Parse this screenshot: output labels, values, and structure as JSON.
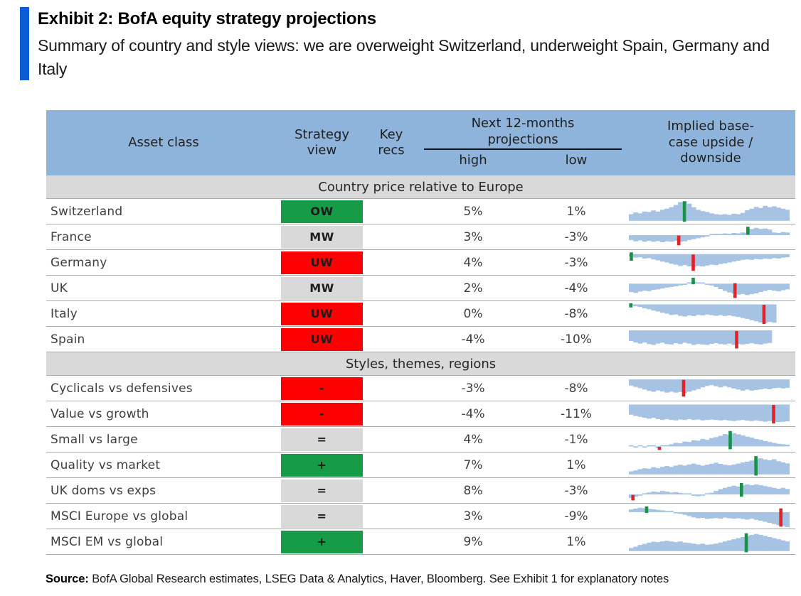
{
  "header": {
    "exhibit_title": "Exhibit 2: BofA equity strategy projections",
    "subtitle": "Summary of country and style views: we are overweight Switzerland, underweight Spain, Germany and Italy"
  },
  "colors": {
    "accent_blue": "#0B5CD5",
    "header_bg": "#8EB4DC",
    "section_bg": "#D9D9D9",
    "view_green": "#169C47",
    "view_red": "#FE0000",
    "view_gray": "#D9D9D9",
    "spark_fill": "#A6C3E4",
    "marker_green": "#1A9148",
    "marker_red": "#E32227"
  },
  "table": {
    "columns": {
      "asset_class": "Asset class",
      "strategy_view": "Strategy view",
      "key_recs": "Key recs",
      "projections_group": "Next 12-months projections",
      "high": "high",
      "low": "low",
      "implied": "Implied base-case upside / downside"
    },
    "sections": [
      {
        "label": "Country price relative to Europe",
        "rows": [
          {
            "name": "Switzerland",
            "view": "OW",
            "view_color": "green",
            "key_recs": "",
            "high": "5%",
            "low": "1%",
            "spark": {
              "baseline": 0.93,
              "values": [
                0.3,
                0.38,
                0.34,
                0.42,
                0.4,
                0.47,
                0.42,
                0.5,
                0.55,
                0.62,
                0.72,
                0.85,
                0.88,
                0.78,
                0.62,
                0.5,
                0.44,
                0.4,
                0.34,
                0.3,
                0.28,
                0.3,
                0.27,
                0.32,
                0.3,
                0.36,
                0.48,
                0.55,
                0.63,
                0.58,
                0.68,
                0.62,
                0.66,
                0.6,
                0.55,
                0.5
              ],
              "markers": [
                {
                  "pos": 0.345,
                  "color": "green",
                  "from": 0.04,
                  "to": 0.97
                }
              ]
            }
          },
          {
            "name": "France",
            "view": "MW",
            "view_color": "gray",
            "key_recs": "",
            "high": "3%",
            "low": "-3%",
            "spark": {
              "baseline": 0.42,
              "values": [
                -0.22,
                -0.28,
                -0.24,
                -0.3,
                -0.26,
                -0.3,
                -0.27,
                -0.32,
                -0.28,
                -0.3,
                -0.26,
                -0.3,
                -0.28,
                -0.22,
                -0.18,
                -0.14,
                -0.1,
                -0.06,
                0.04,
                0.06,
                0.04,
                0.08,
                0.06,
                0.1,
                0.08,
                0.12,
                0.1,
                0.28,
                0.33,
                0.28,
                0.3,
                0.26,
                0.12,
                0.1,
                0.14,
                0.12
              ],
              "markers": [
                {
                  "pos": 0.31,
                  "color": "red",
                  "from": 0.44,
                  "to": 0.88
                },
                {
                  "pos": 0.74,
                  "color": "green",
                  "from": 0.04,
                  "to": 0.4
                }
              ]
            }
          },
          {
            "name": "Germany",
            "view": "UW",
            "view_color": "red",
            "key_recs": "",
            "high": "4%",
            "low": "-3%",
            "spark": {
              "baseline": 0.12,
              "values": [
                -0.1,
                -0.16,
                -0.14,
                -0.2,
                -0.18,
                -0.24,
                -0.28,
                -0.34,
                -0.38,
                -0.44,
                -0.48,
                -0.54,
                -0.5,
                -0.56,
                -0.58,
                -0.54,
                -0.56,
                -0.52,
                -0.48,
                -0.5,
                -0.45,
                -0.42,
                -0.38,
                -0.34,
                -0.3,
                -0.26,
                -0.24,
                -0.26,
                -0.22,
                -0.24,
                -0.2,
                -0.22,
                -0.18,
                -0.2,
                -0.16,
                -0.14
              ],
              "markers": [
                {
                  "pos": 0.015,
                  "color": "green",
                  "from": 0.04,
                  "to": 0.42
                },
                {
                  "pos": 0.4,
                  "color": "red",
                  "from": 0.14,
                  "to": 0.88
                }
              ]
            }
          },
          {
            "name": "UK",
            "view": "MW",
            "view_color": "gray",
            "key_recs": "",
            "high": "2%",
            "low": "-4%",
            "spark": {
              "baseline": 0.3,
              "values": [
                -0.38,
                -0.42,
                -0.36,
                -0.32,
                -0.34,
                -0.28,
                -0.26,
                -0.22,
                -0.18,
                -0.15,
                -0.12,
                -0.08,
                -0.05,
                0.06,
                0.09,
                0.06,
                0.03,
                -0.04,
                -0.08,
                -0.15,
                -0.25,
                -0.33,
                -0.4,
                -0.45,
                -0.5,
                -0.47,
                -0.52,
                -0.48,
                -0.44,
                -0.38,
                -0.33,
                -0.28,
                -0.32,
                -0.35,
                -0.3,
                -0.26
              ],
              "markers": [
                {
                  "pos": 0.4,
                  "color": "green",
                  "from": 0.03,
                  "to": 0.33
                },
                {
                  "pos": 0.66,
                  "color": "red",
                  "from": 0.28,
                  "to": 0.95
                }
              ]
            }
          },
          {
            "name": "Italy",
            "view": "UW",
            "view_color": "red",
            "key_recs": "",
            "high": "0%",
            "low": "-8%",
            "spark": {
              "baseline": 0.08,
              "values": [
                -0.04,
                -0.08,
                -0.12,
                -0.18,
                -0.22,
                -0.28,
                -0.32,
                -0.38,
                -0.42,
                -0.48,
                -0.46,
                -0.52,
                -0.55,
                -0.5,
                -0.53,
                -0.48,
                -0.5,
                -0.46,
                -0.49,
                -0.52,
                -0.49,
                -0.53,
                -0.5,
                -0.54,
                -0.57,
                -0.62,
                -0.66,
                -0.72,
                -0.77,
                -0.82,
                -0.85,
                -0.8,
                -0.83,
                null,
                null,
                null
              ],
              "markers": [
                {
                  "pos": 0.012,
                  "color": "green",
                  "from": 0.03,
                  "to": 0.22
                },
                {
                  "pos": 0.84,
                  "color": "red",
                  "from": 0.1,
                  "to": 0.97
                }
              ]
            }
          },
          {
            "name": "Spain",
            "view": "UW",
            "view_color": "red",
            "key_recs": "",
            "high": "-4%",
            "low": "-10%",
            "spark": {
              "baseline": 0.1,
              "values": [
                -0.48,
                -0.55,
                -0.6,
                -0.55,
                -0.62,
                -0.66,
                -0.6,
                -0.56,
                -0.62,
                -0.64,
                -0.58,
                -0.62,
                -0.56,
                -0.6,
                -0.66,
                -0.62,
                -0.64,
                -0.66,
                -0.61,
                -0.58,
                -0.62,
                -0.64,
                -0.6,
                -0.66,
                -0.62,
                -0.64,
                -0.61,
                -0.58,
                -0.62,
                -0.64,
                -0.6,
                -0.57,
                null,
                null,
                null,
                null
              ],
              "markers": [
                {
                  "pos": 0.67,
                  "color": "red",
                  "from": 0.13,
                  "to": 0.92
                }
              ]
            }
          }
        ]
      },
      {
        "label": "Styles, themes, regions",
        "rows": [
          {
            "name": "Cyclicals vs defensives",
            "view": "-",
            "view_color": "red",
            "key_recs": "",
            "high": "-3%",
            "low": "-8%",
            "spark": {
              "baseline": 0.1,
              "values": [
                -0.28,
                -0.34,
                -0.4,
                -0.46,
                -0.52,
                -0.56,
                -0.5,
                -0.55,
                -0.6,
                -0.56,
                -0.6,
                -0.57,
                -0.62,
                -0.56,
                -0.5,
                -0.44,
                -0.36,
                -0.3,
                -0.26,
                -0.31,
                -0.36,
                -0.31,
                -0.36,
                -0.41,
                -0.46,
                -0.51,
                -0.46,
                -0.51,
                -0.48,
                -0.45,
                -0.42,
                -0.45,
                -0.4,
                -0.38,
                -0.41,
                -0.38
              ],
              "markers": [
                {
                  "pos": 0.34,
                  "color": "red",
                  "from": 0.12,
                  "to": 0.88
                }
              ]
            }
          },
          {
            "name": "Value vs growth",
            "view": "-",
            "view_color": "red",
            "key_recs": "",
            "high": "-4%",
            "low": "-11%",
            "spark": {
              "baseline": 0.08,
              "values": [
                -0.46,
                -0.52,
                -0.56,
                -0.6,
                -0.64,
                -0.6,
                -0.66,
                -0.7,
                -0.66,
                -0.7,
                -0.72,
                -0.68,
                -0.7,
                -0.66,
                -0.7,
                -0.68,
                -0.72,
                -0.7,
                -0.68,
                -0.7,
                -0.72,
                -0.7,
                -0.73,
                -0.75,
                -0.72,
                -0.7,
                -0.73,
                -0.75,
                -0.72,
                -0.75,
                -0.78,
                -0.75,
                -0.78,
                -0.8,
                -0.78,
                -0.76
              ],
              "markers": [
                {
                  "pos": 0.9,
                  "color": "red",
                  "from": 0.1,
                  "to": 0.94
                }
              ]
            }
          },
          {
            "name": "Small vs large",
            "view": "=",
            "view_color": "gray",
            "key_recs": "",
            "high": "4%",
            "low": "-1%",
            "spark": {
              "baseline": 0.82,
              "values": [
                0.03,
                -0.05,
                0.04,
                -0.04,
                0.03,
                0.04,
                -0.08,
                0.03,
                0.06,
                0.1,
                0.16,
                0.14,
                0.22,
                0.2,
                0.28,
                0.26,
                0.34,
                0.3,
                0.38,
                0.42,
                0.48,
                0.56,
                0.52,
                0.6,
                0.55,
                0.5,
                0.44,
                0.4,
                0.34,
                0.3,
                0.24,
                0.2,
                0.16,
                0.12,
                0.1,
                0.08
              ],
              "markers": [
                {
                  "pos": 0.19,
                  "color": "red",
                  "from": 0.84,
                  "to": 0.98
                },
                {
                  "pos": 0.63,
                  "color": "green",
                  "from": 0.12,
                  "to": 0.95
                }
              ]
            }
          },
          {
            "name": "Quality vs market",
            "view": "+",
            "view_color": "green",
            "key_recs": "",
            "high": "7%",
            "low": "1%",
            "spark": {
              "baseline": 0.93,
              "values": [
                0.14,
                0.18,
                0.24,
                0.28,
                0.26,
                0.33,
                0.29,
                0.34,
                0.38,
                0.34,
                0.4,
                0.44,
                0.4,
                0.45,
                0.49,
                0.44,
                0.4,
                0.44,
                0.48,
                0.53,
                0.48,
                0.44,
                0.41,
                0.45,
                0.49,
                0.54,
                0.58,
                0.63,
                0.68,
                0.73,
                0.68,
                0.64,
                0.69,
                0.6,
                0.55,
                0.5
              ],
              "markers": [
                {
                  "pos": 0.79,
                  "color": "green",
                  "from": 0.1,
                  "to": 0.98
                }
              ]
            }
          },
          {
            "name": "UK doms vs exps",
            "view": "=",
            "view_color": "gray",
            "key_recs": "",
            "high": "8%",
            "low": "-3%",
            "spark": {
              "baseline": 0.68,
              "values": [
                -0.16,
                -0.1,
                -0.04,
                0.05,
                0.09,
                0.13,
                0.11,
                0.16,
                0.13,
                0.09,
                0.11,
                0.07,
                0.05,
                0.02,
                -0.06,
                -0.08,
                -0.05,
                0.04,
                0.08,
                0.16,
                0.24,
                0.3,
                0.35,
                0.4,
                0.36,
                0.42,
                0.46,
                0.42,
                0.46,
                0.42,
                0.38,
                0.34,
                0.3,
                0.26,
                0.3,
                0.25
              ],
              "markers": [
                {
                  "pos": 0.025,
                  "color": "red",
                  "from": 0.7,
                  "to": 0.95
                },
                {
                  "pos": 0.7,
                  "color": "green",
                  "from": 0.16,
                  "to": 0.78
                }
              ]
            }
          },
          {
            "name": "MSCI Europe vs global",
            "view": "=",
            "view_color": "gray",
            "key_recs": "",
            "high": "3%",
            "low": "-9%",
            "spark": {
              "baseline": 0.32,
              "values": [
                0.12,
                0.16,
                0.2,
                0.18,
                0.15,
                0.13,
                0.1,
                0.08,
                0.05,
                0.03,
                -0.04,
                -0.08,
                -0.12,
                -0.18,
                -0.24,
                -0.28,
                -0.26,
                -0.31,
                -0.29,
                -0.27,
                -0.3,
                -0.25,
                -0.28,
                -0.3,
                -0.28,
                -0.31,
                -0.34,
                -0.3,
                -0.35,
                -0.39,
                -0.44,
                -0.49,
                -0.54,
                -0.59,
                -0.64,
                -0.68
              ],
              "markers": [
                {
                  "pos": 0.11,
                  "color": "green",
                  "from": 0.06,
                  "to": 0.36
                },
                {
                  "pos": 0.945,
                  "color": "red",
                  "from": 0.15,
                  "to": 0.98
                }
              ]
            }
          },
          {
            "name": "MSCI EM vs global",
            "view": "+",
            "view_color": "green",
            "key_recs": "",
            "high": "9%",
            "low": "1%",
            "spark": {
              "baseline": 0.93,
              "values": [
                0.14,
                0.2,
                0.28,
                0.33,
                0.38,
                0.43,
                0.41,
                0.44,
                0.47,
                0.44,
                0.41,
                0.44,
                0.39,
                0.37,
                0.34,
                0.31,
                0.34,
                0.29,
                0.31,
                0.34,
                0.39,
                0.44,
                0.49,
                0.54,
                0.59,
                0.64,
                0.69,
                0.74,
                0.78,
                0.74,
                0.69,
                0.64,
                0.59,
                0.54,
                0.49,
                0.44
              ],
              "markers": [
                {
                  "pos": 0.73,
                  "color": "green",
                  "from": 0.12,
                  "to": 0.98
                }
              ]
            }
          }
        ]
      }
    ]
  },
  "source": {
    "label": "Source:",
    "text": " BofA Global Research estimates, LSEG Data & Analytics, Haver, Bloomberg. See Exhibit 1 for explanatory notes"
  }
}
